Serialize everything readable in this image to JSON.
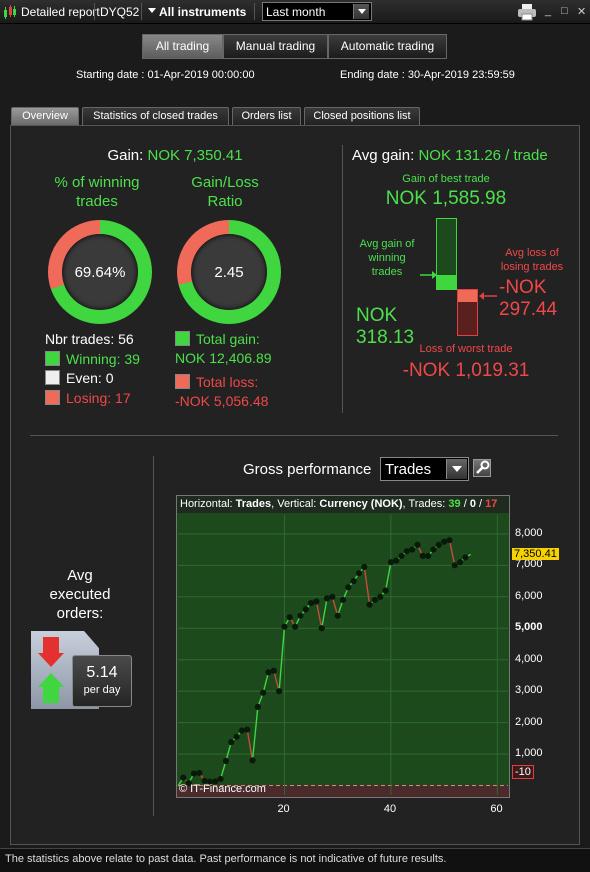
{
  "toolbar": {
    "report_label": "Detailed report",
    "account": "DYQ52",
    "instruments": "All instruments",
    "period": "Last month",
    "close": "✕",
    "restore": "□",
    "minimize": "_"
  },
  "trading_buttons": [
    "All trading",
    "Manual trading",
    "Automatic trading"
  ],
  "dates": {
    "start": "Starting date :  01-Apr-2019 00:00:00",
    "end": "Ending date :  30-Apr-2019 23:59:59"
  },
  "tabs": [
    "Overview",
    "Statistics of closed trades",
    "Orders list",
    "Closed positions list"
  ],
  "overview": {
    "gain_label": "Gain:",
    "gain_value": "NOK 7,350.41",
    "winning_pct_title1": "% of winning",
    "winning_pct_title2": "trades",
    "winning_pct": "69.64%",
    "winning_fraction": 0.6964,
    "ratio_title1": "Gain/Loss",
    "ratio_title2": "Ratio",
    "ratio_value": "2.45",
    "ratio_fraction": 0.71,
    "nbr_trades": "Nbr trades: 56",
    "winning": "Winning: 39",
    "even": "Even: 0",
    "losing": "Losing: 17",
    "total_gain_label": "Total gain:",
    "total_gain_value": "NOK 12,406.89",
    "total_loss_label": "Total loss:",
    "total_loss_value": "-NOK 5,056.48",
    "avg_gain_label": "Avg gain:",
    "avg_gain_value": "NOK 131.26 / trade",
    "best_trade_label": "Gain of best trade",
    "best_trade_value": "NOK 1,585.98",
    "avg_win_label1": "Avg gain of",
    "avg_win_label2": "winning",
    "avg_win_label3": "trades",
    "avg_win_value1": "NOK",
    "avg_win_value2": "318.13",
    "avg_loss_label1": "Avg loss of",
    "avg_loss_label2": "losing trades",
    "avg_loss_value1": "-NOK",
    "avg_loss_value2": "297.44",
    "worst_trade_label": "Loss of worst trade",
    "worst_trade_value": "-NOK 1,019.31"
  },
  "executed": {
    "title1": "Avg",
    "title2": "executed",
    "title3": "orders:",
    "value": "5.14",
    "unit": "per day"
  },
  "performance": {
    "title": "Gross performance",
    "select": "Trades"
  },
  "chart_data": {
    "type": "line",
    "header_h": "Horizontal:",
    "header_h_val": "Trades",
    "header_v": ", Vertical:",
    "header_v_val": "Currency (NOK)",
    "header_t": ", Trades:",
    "header_win": "39",
    "header_sep1": " / ",
    "header_even": "0",
    "header_sep2": " / ",
    "header_lose": "17",
    "xlim": [
      0,
      62
    ],
    "ylim": [
      -300,
      8600
    ],
    "yticks": [
      "8,000",
      "7,000",
      "6,000",
      "5,000",
      "4,000",
      "3,000",
      "2,000",
      "1,000"
    ],
    "ytick_values": [
      8000,
      7000,
      6000,
      5000,
      4000,
      3000,
      2000,
      1000
    ],
    "xticks": [
      "20",
      "40",
      "60"
    ],
    "xtick_values": [
      20,
      40,
      60
    ],
    "last_value_label": "7,350.41",
    "zero_label": "-10",
    "watermark": "© IT-Finance.com",
    "x": [
      0,
      1,
      2,
      3,
      4,
      5,
      6,
      7,
      8,
      9,
      10,
      11,
      12,
      13,
      14,
      15,
      16,
      17,
      18,
      19,
      20,
      21,
      22,
      23,
      24,
      25,
      26,
      27,
      28,
      29,
      30,
      31,
      32,
      33,
      34,
      35,
      36,
      37,
      38,
      39,
      40,
      41,
      42,
      43,
      44,
      45,
      46,
      47,
      48,
      49,
      50,
      51,
      52,
      53,
      54,
      55
    ],
    "values": [
      -10,
      250,
      80,
      380,
      400,
      150,
      120,
      130,
      210,
      780,
      1380,
      1550,
      1750,
      1780,
      800,
      2500,
      2950,
      3600,
      3650,
      3000,
      5050,
      5350,
      5050,
      5400,
      5600,
      5800,
      5850,
      5000,
      5950,
      6000,
      5400,
      5900,
      6300,
      6500,
      6750,
      6950,
      5750,
      5900,
      6000,
      6200,
      7100,
      7150,
      7300,
      7450,
      7500,
      7650,
      7300,
      7300,
      7500,
      7650,
      7750,
      7800,
      7000,
      7100,
      7250,
      7350
    ],
    "colors": {
      "background": "#1c4a1c",
      "up": "#3fd63f",
      "down": "#c94b3a",
      "last": "#f5d200"
    }
  },
  "disclaimer": "The statistics above relate to past data. Past performance is not indicative of future results."
}
